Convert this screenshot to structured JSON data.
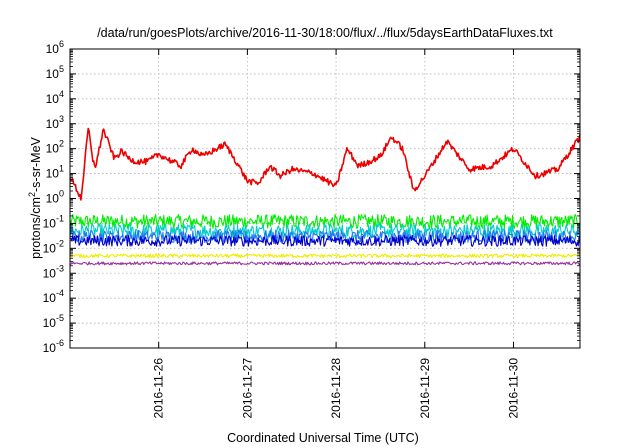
{
  "chart_data": {
    "type": "line",
    "title": "/data/run/goesPlots/archive/2016-11-30/18:00/flux/../flux/5daysEarthDataFluxes.txt",
    "xlabel": "Coordinated Universal Time (UTC)",
    "ylabel": {
      "base": "protons/cm",
      "sup": "2",
      "rest": "-s-sr-MeV"
    },
    "y_scale": "log",
    "ylim_exp": [
      -6,
      6
    ],
    "xlim_days": [
      "2016-11-25 00:00",
      "2016-11-30 18:00"
    ],
    "x_ticks": [
      "2016-11-26",
      "2016-11-27",
      "2016-11-28",
      "2016-11-29",
      "2016-11-30"
    ],
    "y_ticks": [
      {
        "base": "10",
        "exp": "6"
      },
      {
        "base": "10",
        "exp": "5"
      },
      {
        "base": "10",
        "exp": "4"
      },
      {
        "base": "10",
        "exp": "3"
      },
      {
        "base": "10",
        "exp": "2"
      },
      {
        "base": "10",
        "exp": "1"
      },
      {
        "base": "10",
        "exp": "0"
      },
      {
        "base": "10",
        "exp": "-1"
      },
      {
        "base": "10",
        "exp": "-2"
      },
      {
        "base": "10",
        "exp": "-3"
      },
      {
        "base": "10",
        "exp": "-4"
      },
      {
        "base": "10",
        "exp": "-5"
      },
      {
        "base": "10",
        "exp": "-6"
      }
    ],
    "grid": true,
    "series": [
      {
        "color": "#ee0000",
        "noise": 0.12,
        "x": [
          "2016-11-25 00:00",
          "2016-11-25 03:00",
          "2016-11-25 05:00",
          "2016-11-25 06:00",
          "2016-11-25 07:00",
          "2016-11-25 09:00",
          "2016-11-25 12:00",
          "2016-11-25 14:00",
          "2016-11-25 16:00",
          "2016-11-25 18:00",
          "2016-11-25 21:00",
          "2016-11-26 00:00",
          "2016-11-26 06:00",
          "2016-11-26 09:00",
          "2016-11-26 12:00",
          "2016-11-26 18:00",
          "2016-11-26 21:00",
          "2016-11-27 00:00",
          "2016-11-27 03:00",
          "2016-11-27 06:00",
          "2016-11-27 09:00",
          "2016-11-27 12:00",
          "2016-11-27 18:00",
          "2016-11-28 00:00",
          "2016-11-28 03:00",
          "2016-11-28 06:00",
          "2016-11-28 09:00",
          "2016-11-28 12:00",
          "2016-11-28 15:00",
          "2016-11-28 18:00",
          "2016-11-28 21:00",
          "2016-11-29 00:00",
          "2016-11-29 06:00",
          "2016-11-29 12:00",
          "2016-11-29 18:00",
          "2016-11-30 00:00",
          "2016-11-30 06:00",
          "2016-11-30 12:00",
          "2016-11-30 18:00"
        ],
        "y": [
          8,
          1,
          800,
          40,
          20,
          600,
          40,
          80,
          40,
          30,
          30,
          60,
          20,
          100,
          50,
          150,
          30,
          5,
          4,
          20,
          8,
          15,
          10,
          3,
          100,
          20,
          30,
          50,
          300,
          100,
          2,
          8,
          200,
          15,
          20,
          100,
          8,
          15,
          300
        ]
      },
      {
        "color": "#00ee00",
        "noise": 0.28,
        "x": [
          "2016-11-25 00:00",
          "2016-11-30 18:00"
        ],
        "y": [
          0.12,
          0.12
        ]
      },
      {
        "color": "#00cccc",
        "noise": 0.28,
        "x": [
          "2016-11-25 00:00",
          "2016-11-30 18:00"
        ],
        "y": [
          0.05,
          0.05
        ]
      },
      {
        "color": "#2277ee",
        "noise": 0.25,
        "x": [
          "2016-11-25 00:00",
          "2016-11-30 18:00"
        ],
        "y": [
          0.03,
          0.03
        ]
      },
      {
        "color": "#0000cc",
        "noise": 0.22,
        "x": [
          "2016-11-25 00:00",
          "2016-11-30 18:00"
        ],
        "y": [
          0.02,
          0.02
        ]
      },
      {
        "color": "#eeee00",
        "noise": 0.07,
        "x": [
          "2016-11-25 00:00",
          "2016-11-30 18:00"
        ],
        "y": [
          0.005,
          0.005
        ]
      },
      {
        "color": "#993399",
        "noise": 0.06,
        "x": [
          "2016-11-25 00:00",
          "2016-11-30 18:00"
        ],
        "y": [
          0.0025,
          0.0025
        ]
      }
    ]
  }
}
